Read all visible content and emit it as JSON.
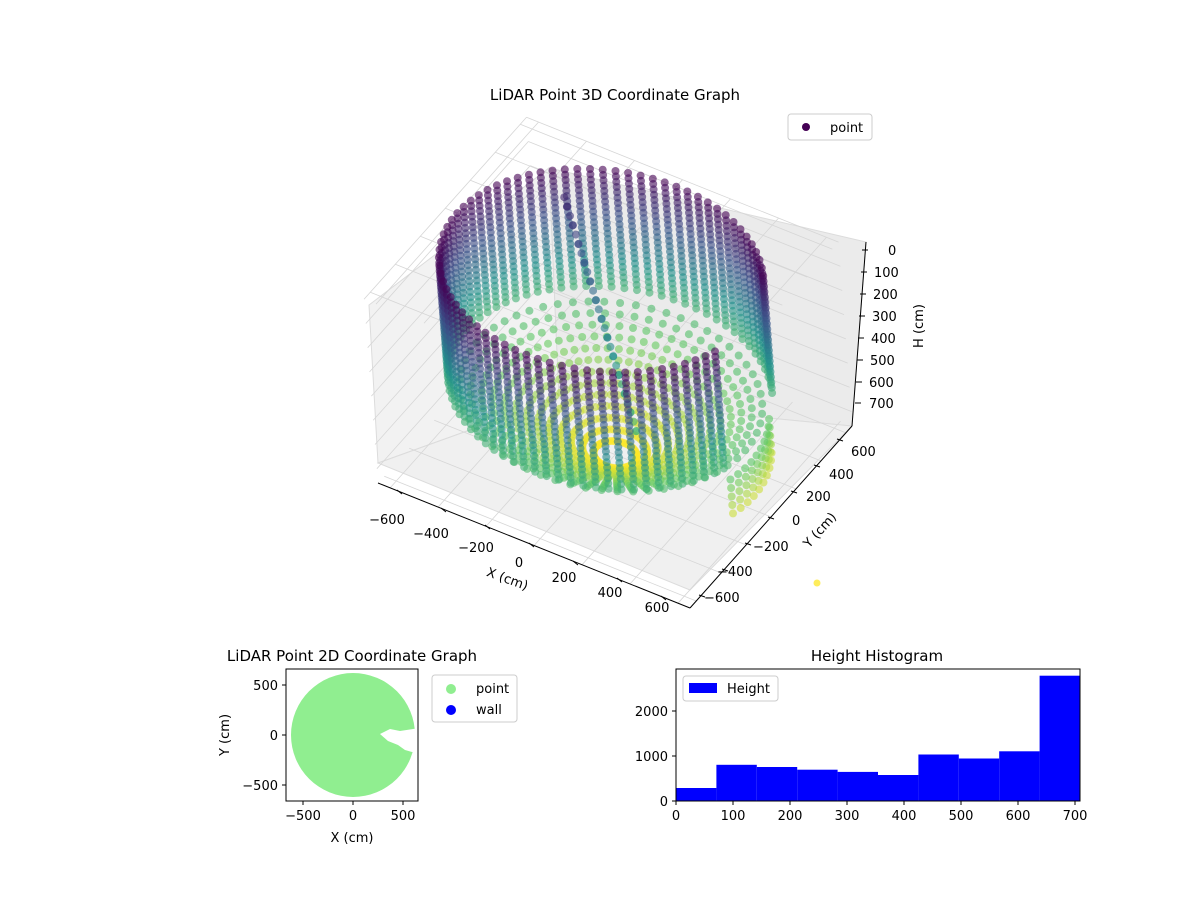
{
  "colors": {
    "viridis_dark": "#440154",
    "viridis_mid": "#21918c",
    "viridis_light": "#fde725",
    "point_2d": "#90ee90",
    "wall_2d": "#0000ff",
    "histogram": "#0000ff"
  },
  "chart_data": [
    {
      "type": "scatter",
      "projection": "3d",
      "title": "LiDAR Point 3D Coordinate Graph",
      "xlabel": "X (cm)",
      "ylabel": "Y (cm)",
      "zlabel": "H (cm)",
      "xticks": [
        "−600",
        "−400",
        "−200",
        "0",
        "200",
        "400",
        "600"
      ],
      "yticks": [
        "−600",
        "−400",
        "−200",
        "0",
        "200",
        "400",
        "600"
      ],
      "zticks": [
        "0",
        "100",
        "200",
        "300",
        "400",
        "500",
        "600",
        "700"
      ],
      "xlim": [
        -650,
        650
      ],
      "ylim": [
        -650,
        650
      ],
      "zlim": [
        0,
        760
      ],
      "z_axis_inverted": true,
      "colormap": "viridis",
      "legend": [
        {
          "label": "point",
          "color": "#440154"
        }
      ],
      "legend_position": "top-right",
      "stray_point_color": "#fde725",
      "shape": {
        "wall_radius": 600,
        "wall_height_range": [
          0,
          500
        ],
        "floor_height_range": [
          500,
          760
        ],
        "open_sector_deg": [
          -15,
          30
        ],
        "inner_structure": "diagonal column of points from the wall top down toward the open sector"
      }
    },
    {
      "type": "scatter",
      "title": "LiDAR Point 2D Coordinate Graph",
      "xlabel": "X (cm)",
      "ylabel": "Y (cm)",
      "xticks": [
        "−500",
        "0",
        "500"
      ],
      "yticks": [
        "−500",
        "0",
        "500"
      ],
      "xlim": [
        -660,
        660
      ],
      "ylim": [
        -660,
        660
      ],
      "legend": [
        {
          "label": "point",
          "color": "#90ee90"
        },
        {
          "label": "wall",
          "color": "#0000ff"
        }
      ],
      "legend_position": "outside-right",
      "shape": "filled disc of radius ~620 cm centred at origin with a notch cut on the right side near y = 0"
    },
    {
      "type": "bar",
      "subtype": "histogram",
      "title": "Height Histogram",
      "xlabel": "",
      "ylabel": "",
      "bin_edges": [
        0,
        77,
        154,
        231,
        308,
        385,
        462,
        539,
        616,
        693,
        770
      ],
      "counts": [
        290,
        810,
        760,
        700,
        650,
        580,
        1040,
        950,
        1110,
        2800
      ],
      "xticks": [
        "0",
        "100",
        "200",
        "300",
        "400",
        "500",
        "600",
        "700"
      ],
      "yticks": [
        "0",
        "1000",
        "2000"
      ],
      "xlim": [
        0,
        770
      ],
      "ylim": [
        0,
        2950
      ],
      "legend": [
        {
          "label": "Height",
          "color": "#0000ff"
        }
      ],
      "legend_position": "top-left"
    }
  ]
}
